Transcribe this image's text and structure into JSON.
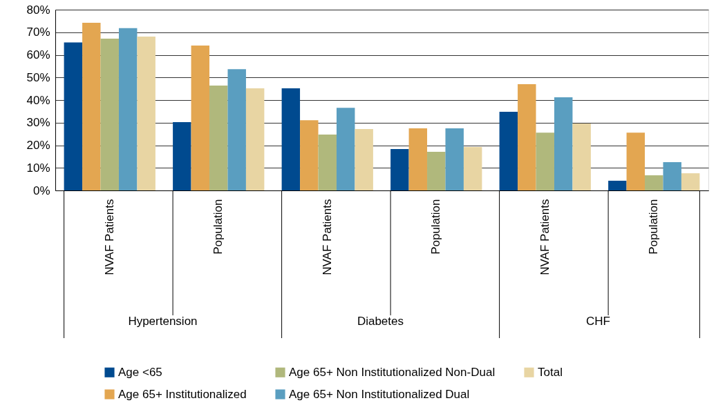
{
  "chart_data": {
    "type": "bar",
    "categories": [
      "NVAF Patients",
      "Population",
      "NVAF Patients",
      "Population",
      "NVAF Patients",
      "Population"
    ],
    "annotations": [
      "Hypertension",
      "Diabetes",
      "CHF"
    ],
    "series": [
      {
        "name": "Age <65",
        "color": "#004a8f",
        "values": [
          65.5,
          30.2,
          45.2,
          18.3,
          34.8,
          4.3
        ]
      },
      {
        "name": "Age 65+ Institutionalized",
        "color": "#e3a651",
        "values": [
          74.2,
          64.1,
          31.1,
          27.5,
          47.0,
          25.6
        ]
      },
      {
        "name": "Age 65+ Non Institutionalized Non-Dual",
        "color": "#b0b87c",
        "values": [
          67.2,
          46.4,
          24.7,
          17.1,
          25.6,
          6.7
        ]
      },
      {
        "name": "Age 65+ Non Institutionalized Dual",
        "color": "#5a9ec0",
        "values": [
          71.8,
          53.7,
          36.6,
          27.5,
          41.2,
          12.5
        ]
      },
      {
        "name": "Total",
        "color": "#e8d5a3",
        "values": [
          68.1,
          45.2,
          27.2,
          19.2,
          29.6,
          7.6
        ]
      }
    ],
    "ylim": [
      0,
      80
    ],
    "yticks": [
      {
        "value": 0,
        "label": "0%"
      },
      {
        "value": 10,
        "label": "10%"
      },
      {
        "value": 20,
        "label": "20%"
      },
      {
        "value": 30,
        "label": "30%"
      },
      {
        "value": 40,
        "label": "40%"
      },
      {
        "value": 50,
        "label": "50%"
      },
      {
        "value": 60,
        "label": "60%"
      },
      {
        "value": 70,
        "label": "70%"
      },
      {
        "value": 80,
        "label": "80%"
      }
    ],
    "grid": "y",
    "legend": "bottom"
  }
}
